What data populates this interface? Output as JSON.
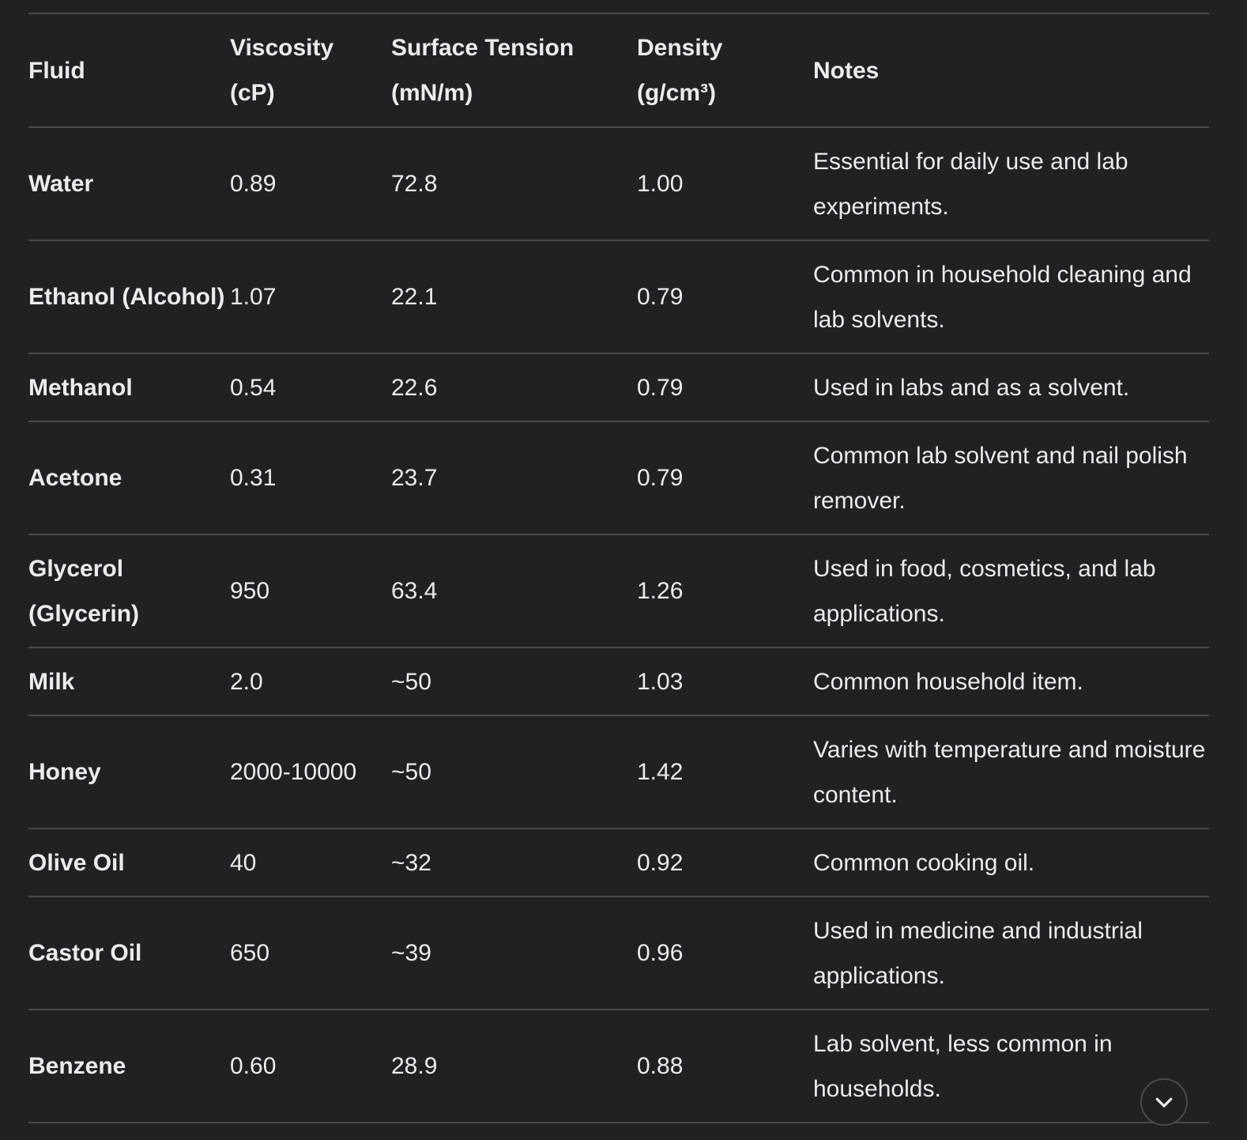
{
  "table": {
    "headers": [
      {
        "line1": "Fluid",
        "line2": ""
      },
      {
        "line1": "Viscosity",
        "line2": "(cP)"
      },
      {
        "line1": "Surface Tension",
        "line2": "(mN/m)"
      },
      {
        "line1": "Density",
        "line2": "(g/cm³)"
      },
      {
        "line1": "Notes",
        "line2": ""
      }
    ],
    "rows": [
      {
        "fluid": "Water",
        "viscosity": "0.89",
        "surface_tension": "72.8",
        "density": "1.00",
        "notes": "Essential for daily use and lab experiments."
      },
      {
        "fluid": "Ethanol (Alcohol)",
        "viscosity": "1.07",
        "surface_tension": "22.1",
        "density": "0.79",
        "notes": "Common in household cleaning and lab solvents."
      },
      {
        "fluid": "Methanol",
        "viscosity": "0.54",
        "surface_tension": "22.6",
        "density": "0.79",
        "notes": "Used in labs and as a solvent."
      },
      {
        "fluid": "Acetone",
        "viscosity": "0.31",
        "surface_tension": "23.7",
        "density": "0.79",
        "notes": "Common lab solvent and nail polish remover."
      },
      {
        "fluid": "Glycerol (Glycerin)",
        "viscosity": "950",
        "surface_tension": "63.4",
        "density": "1.26",
        "notes": "Used in food, cosmetics, and lab applications."
      },
      {
        "fluid": "Milk",
        "viscosity": "2.0",
        "surface_tension": "~50",
        "density": "1.03",
        "notes": "Common household item."
      },
      {
        "fluid": "Honey",
        "viscosity": "2000-10000",
        "surface_tension": "~50",
        "density": "1.42",
        "notes": "Varies with temperature and moisture content."
      },
      {
        "fluid": "Olive Oil",
        "viscosity": "40",
        "surface_tension": "~32",
        "density": "0.92",
        "notes": "Common cooking oil."
      },
      {
        "fluid": "Castor Oil",
        "viscosity": "650",
        "surface_tension": "~39",
        "density": "0.96",
        "notes": "Used in medicine and industrial applications."
      },
      {
        "fluid": "Benzene",
        "viscosity": "0.60",
        "surface_tension": "28.9",
        "density": "0.88",
        "notes": "Lab solvent, less common in households."
      }
    ]
  },
  "scroll_button": {
    "icon": "chevron-down-icon"
  },
  "colors": {
    "background": "#212124",
    "text": "#ececec",
    "border": "#4a4a4e"
  }
}
